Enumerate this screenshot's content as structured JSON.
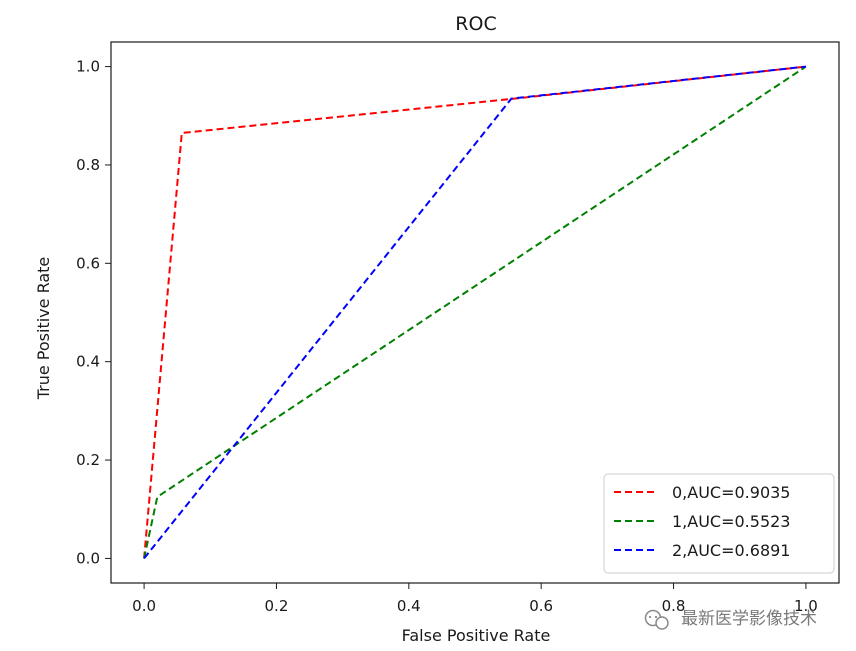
{
  "chart_data": {
    "type": "line",
    "title": "ROC",
    "xlabel": "False Positive Rate",
    "ylabel": "True Positive Rate",
    "xlim": [
      -0.05,
      1.05
    ],
    "ylim": [
      -0.05,
      1.05
    ],
    "xticks": [
      0.0,
      0.2,
      0.4,
      0.6,
      0.8,
      1.0
    ],
    "xtick_labels": [
      "0.0",
      "0.2",
      "0.4",
      "0.6",
      "0.8",
      "1.0"
    ],
    "yticks": [
      0.0,
      0.2,
      0.4,
      0.6,
      0.8,
      1.0
    ],
    "ytick_labels": [
      "0.0",
      "0.2",
      "0.4",
      "0.6",
      "0.8",
      "1.0"
    ],
    "grid": false,
    "legend_position": "lower-right",
    "line_style": "dashed",
    "series": [
      {
        "name": "0,AUC=0.9035",
        "color": "#ff0000",
        "x": [
          0.0,
          0.057,
          0.56,
          1.0
        ],
        "y": [
          0.0,
          0.865,
          0.935,
          1.0
        ]
      },
      {
        "name": "1,AUC=0.5523",
        "color": "#008000",
        "x": [
          0.0,
          0.02,
          1.0
        ],
        "y": [
          0.0,
          0.125,
          1.0
        ]
      },
      {
        "name": "2,AUC=0.6891",
        "color": "#0000ff",
        "x": [
          0.0,
          0.555,
          1.0
        ],
        "y": [
          0.0,
          0.935,
          1.0
        ]
      }
    ]
  },
  "watermark": {
    "text": "最新医学影像技术",
    "icon": "wechat-icon"
  }
}
